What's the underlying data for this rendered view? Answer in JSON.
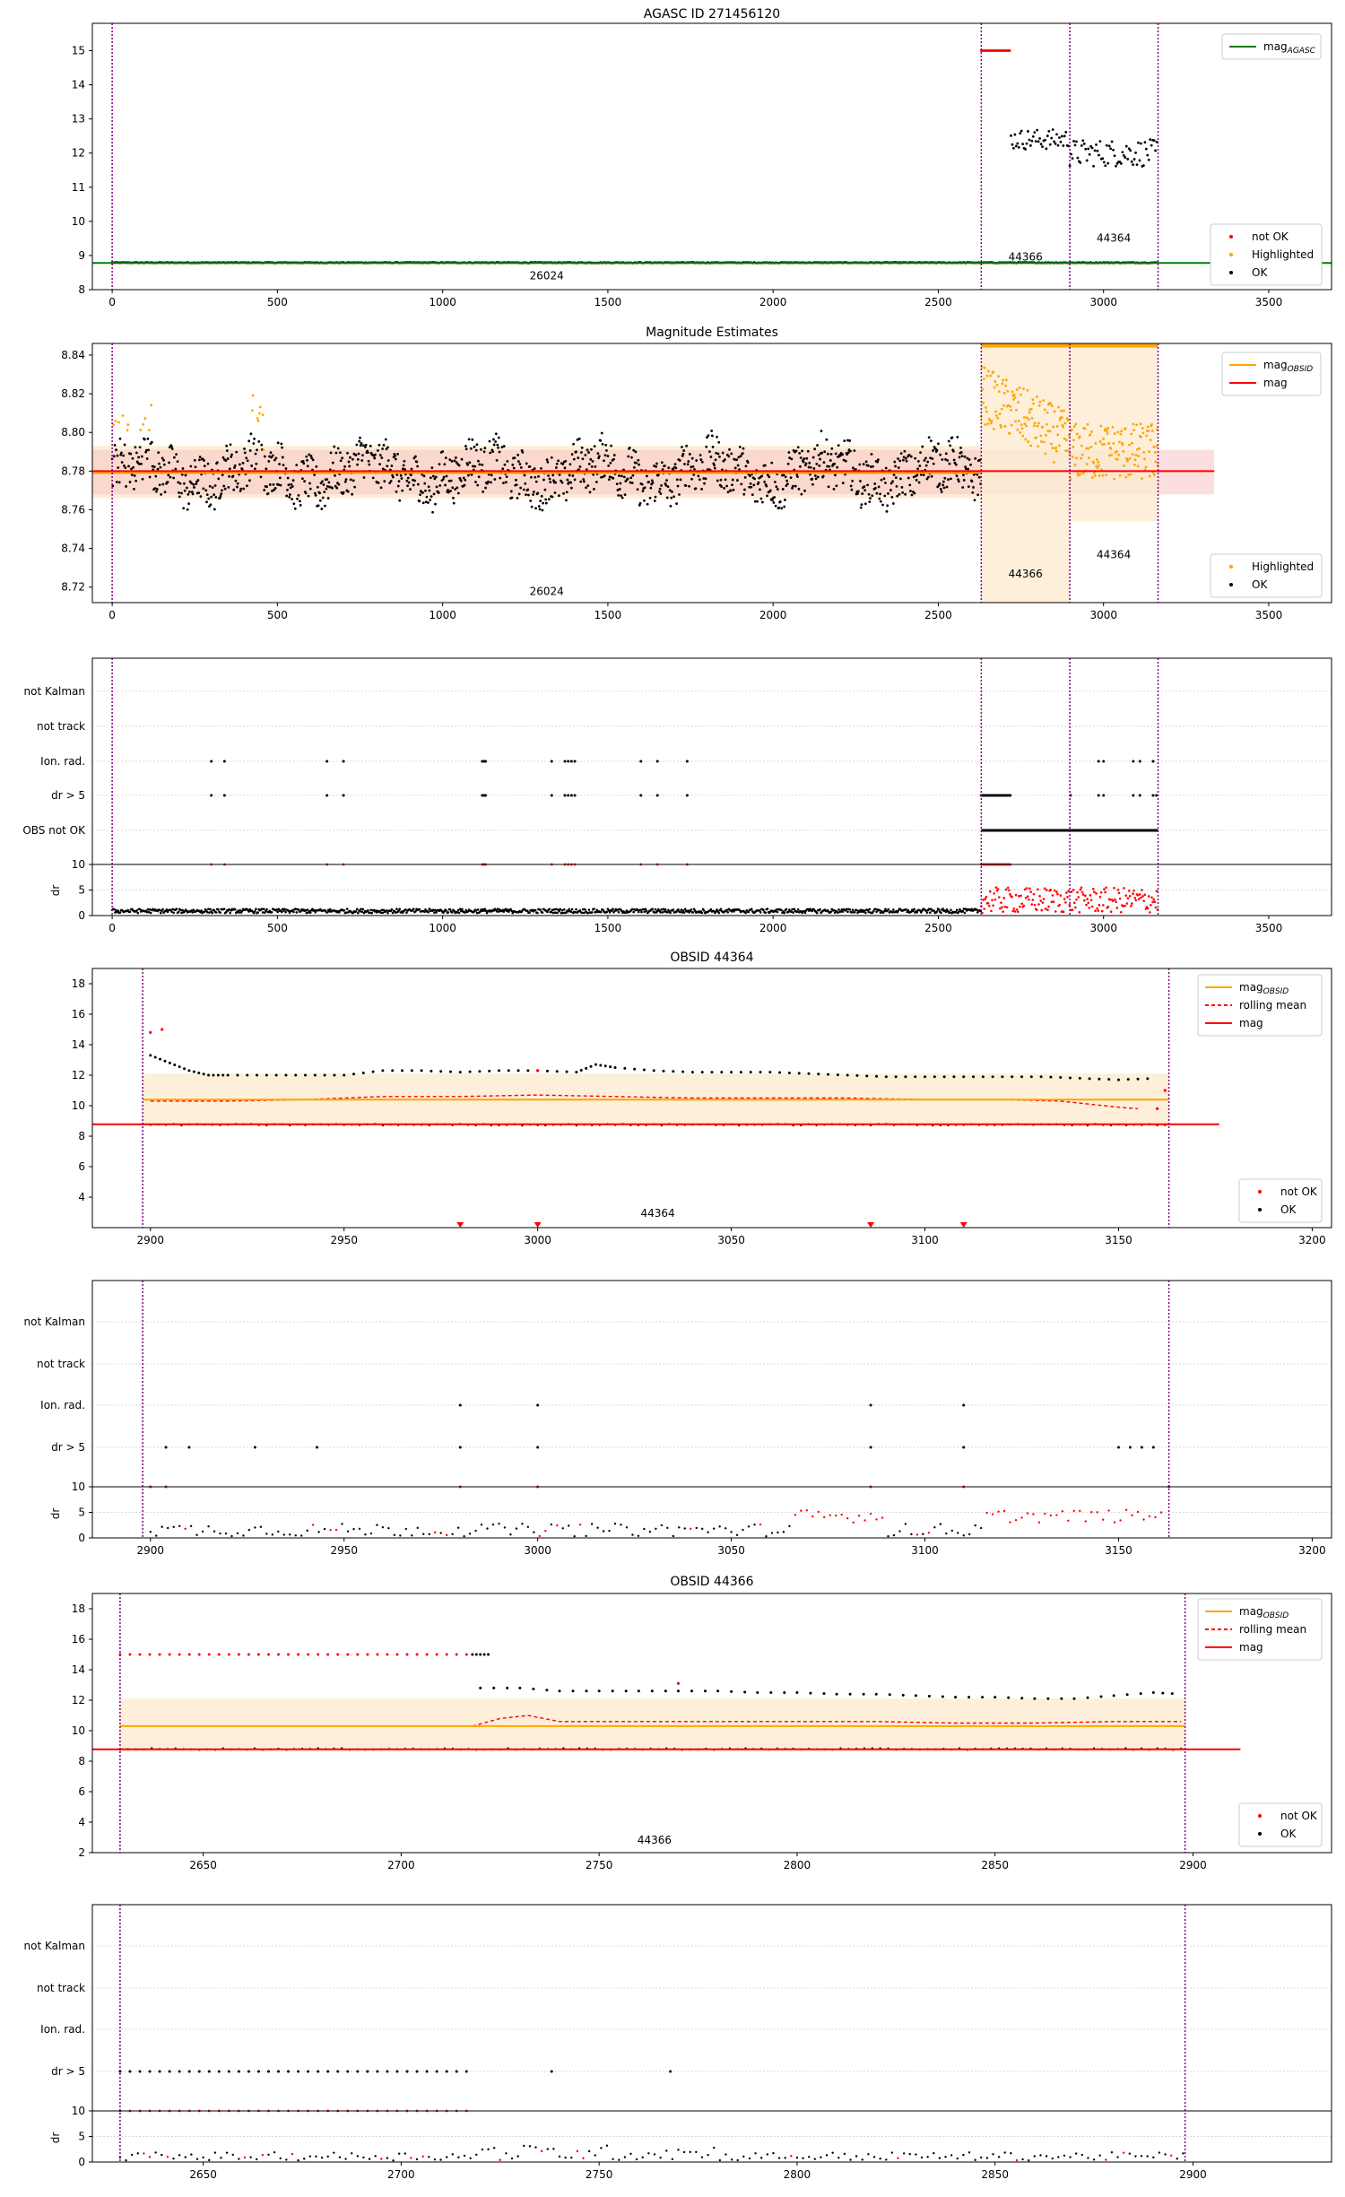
{
  "figure": {
    "title_main": "AGASC ID 271456120"
  },
  "colors": {
    "ok": "#000000",
    "not_ok": "#ff0000",
    "highlighted": "#ffa500",
    "mag_agasc": "#008000",
    "mag_obsid": "#ffa500",
    "mag": "#ff0000",
    "rolling": "#ff0000",
    "obs_line": "#800080",
    "grid": "#cccccc",
    "shade_orange": "#fdebd0",
    "shade_red": "#f8c9c9"
  },
  "chart_data": [
    {
      "type": "scatter",
      "title": "AGASC ID 271456120",
      "xlim": [
        -60,
        3690
      ],
      "ylim": [
        8,
        15.8
      ],
      "xticks": [
        "0",
        "500",
        "1000",
        "1500",
        "2000",
        "2500",
        "3000",
        "3500"
      ],
      "xtick_values": [
        0,
        500,
        1000,
        1500,
        2000,
        2500,
        3000,
        3500
      ],
      "yticks": [
        "8",
        "9",
        "10",
        "11",
        "12",
        "13",
        "14",
        "15"
      ],
      "ytick_values": [
        8,
        9,
        10,
        11,
        12,
        13,
        14,
        15
      ],
      "obs_boundaries": [
        0,
        2630,
        2898,
        3165
      ],
      "obsid_labels": [
        {
          "text": "26024",
          "x": 1315,
          "y": 8.3
        },
        {
          "text": "44366",
          "x": 2764,
          "y": 8.85
        },
        {
          "text": "44364",
          "x": 3031,
          "y": 9.4
        }
      ],
      "agasc_mag": 8.78,
      "series": [
        {
          "name": "OK",
          "segments": [
            {
              "x0": 0,
              "x1": 2630,
              "y": 8.79,
              "spread": 0.02
            },
            {
              "x0": 2630,
              "x1": 3165,
              "y": 8.79,
              "spread": 0.02
            },
            {
              "x0": 2720,
              "x1": 2898,
              "y": 12.4,
              "spread": 0.6
            },
            {
              "x0": 2898,
              "x1": 3165,
              "y": 12.0,
              "spread": 0.8
            }
          ]
        },
        {
          "name": "not OK",
          "segments": [
            {
              "x0": 2630,
              "x1": 2720,
              "y": 15.0,
              "spread": 0.0
            }
          ]
        },
        {
          "name": "Highlighted",
          "segments": []
        }
      ],
      "legend_top": [
        "mag_AGASC"
      ],
      "legend_bottom": [
        "not OK",
        "Highlighted",
        "OK"
      ]
    },
    {
      "type": "scatter",
      "title": "Magnitude Estimates",
      "xlim": [
        -60,
        3690
      ],
      "ylim": [
        8.712,
        8.846
      ],
      "xticks": [
        "0",
        "500",
        "1000",
        "1500",
        "2000",
        "2500",
        "3000",
        "3500"
      ],
      "xtick_values": [
        0,
        500,
        1000,
        1500,
        2000,
        2500,
        3000,
        3500
      ],
      "yticks": [
        "8.72",
        "8.74",
        "8.76",
        "8.78",
        "8.80",
        "8.82",
        "8.84"
      ],
      "ytick_values": [
        8.72,
        8.74,
        8.76,
        8.78,
        8.8,
        8.82,
        8.84
      ],
      "obs_boundaries": [
        0,
        2630,
        2898,
        3165
      ],
      "mag": 8.78,
      "mag_band": [
        8.768,
        8.791
      ],
      "mag_obsid": [
        {
          "x0": -60,
          "x1": 2630,
          "y": 8.779,
          "band": [
            8.766,
            8.793
          ]
        },
        {
          "x0": 2630,
          "x1": 2898,
          "y": 8.85,
          "band": [
            8.712,
            8.846
          ]
        },
        {
          "x0": 2898,
          "x1": 3165,
          "y": 8.85,
          "band": [
            8.754,
            8.846
          ]
        }
      ],
      "obsid_labels": [
        {
          "text": "26024",
          "x": 1315,
          "y": 8.716
        },
        {
          "text": "44366",
          "x": 2764,
          "y": 8.725
        },
        {
          "text": "44364",
          "x": 3031,
          "y": 8.735
        }
      ],
      "legend_top": [
        "mag_OBSID",
        "mag"
      ],
      "legend_bottom": [
        "Highlighted",
        "OK"
      ]
    },
    {
      "type": "scatter",
      "title": "",
      "flags": [
        "not Kalman",
        "not track",
        "Ion. rad.",
        "dr > 5",
        "OBS not OK"
      ],
      "xlim": [
        -60,
        3690
      ],
      "obs_boundaries": [
        0,
        2630,
        2898,
        3165
      ],
      "ion_rad_x": [
        300,
        340,
        650,
        700,
        1120,
        1125,
        1130,
        1330,
        1370,
        1380,
        1390,
        1400,
        1600,
        1650,
        1740
      ],
      "dr5_x": [
        300,
        340,
        650,
        700,
        1120,
        1125,
        1130,
        1330,
        1370,
        1380,
        1390,
        1400,
        1600,
        1650,
        1740
      ],
      "dr5_dense": [
        [
          2630,
          2720
        ]
      ],
      "dr5_late_x": [
        2900,
        2985,
        3000,
        3090,
        3110,
        3150,
        3160
      ],
      "ion_late_x": [
        2985,
        3000,
        3090,
        3110,
        3150
      ],
      "obs_not_ok": [
        [
          2630,
          3165
        ]
      ],
      "dr_ylim": [
        0,
        10
      ],
      "dr_yticks": [
        "0",
        "5",
        "10"
      ],
      "dr_ytick_values": [
        0,
        5,
        10
      ],
      "ylabel_dr": "dr"
    },
    {
      "type": "scatter",
      "title": "OBSID 44364",
      "xlim": [
        2885,
        3205
      ],
      "ylim": [
        2,
        19
      ],
      "xticks": [
        "2900",
        "2950",
        "3000",
        "3050",
        "3100",
        "3150",
        "3200"
      ],
      "xtick_values": [
        2900,
        2950,
        3000,
        3050,
        3100,
        3150,
        3200
      ],
      "yticks": [
        "4",
        "6",
        "8",
        "10",
        "12",
        "14",
        "16",
        "18"
      ],
      "ytick_values": [
        4,
        6,
        8,
        10,
        12,
        14,
        16,
        18
      ],
      "obs_boundaries": [
        2898,
        3163
      ],
      "mag": 8.78,
      "mag_obsid": 10.4,
      "mag_obsid_band": [
        8.7,
        12.1
      ],
      "ok_track": [
        [
          2900,
          13.3
        ],
        [
          2905,
          12.8
        ],
        [
          2910,
          12.3
        ],
        [
          2915,
          12.0
        ],
        [
          2920,
          12.0
        ],
        [
          2930,
          12.0
        ],
        [
          2940,
          12.0
        ],
        [
          2950,
          12.0
        ],
        [
          2960,
          12.3
        ],
        [
          2970,
          12.3
        ],
        [
          2980,
          12.2
        ],
        [
          2990,
          12.3
        ],
        [
          3000,
          12.3
        ],
        [
          3010,
          12.2
        ],
        [
          3015,
          12.7
        ],
        [
          3020,
          12.5
        ],
        [
          3030,
          12.3
        ],
        [
          3040,
          12.2
        ],
        [
          3050,
          12.2
        ],
        [
          3060,
          12.2
        ],
        [
          3070,
          12.1
        ],
        [
          3080,
          12.0
        ],
        [
          3090,
          11.9
        ],
        [
          3100,
          11.9
        ],
        [
          3110,
          11.9
        ],
        [
          3120,
          11.9
        ],
        [
          3130,
          11.9
        ],
        [
          3140,
          11.8
        ],
        [
          3150,
          11.7
        ],
        [
          3160,
          11.8
        ]
      ],
      "not_ok_track": [
        [
          2900,
          14.8
        ],
        [
          2903,
          15.0
        ],
        [
          3000,
          12.3
        ],
        [
          3162,
          11.0
        ],
        [
          3160,
          9.8
        ]
      ],
      "rolling_track": [
        [
          2900,
          10.3
        ],
        [
          2920,
          10.3
        ],
        [
          2940,
          10.4
        ],
        [
          2960,
          10.6
        ],
        [
          2980,
          10.6
        ],
        [
          3000,
          10.7
        ],
        [
          3020,
          10.6
        ],
        [
          3040,
          10.5
        ],
        [
          3060,
          10.5
        ],
        [
          3080,
          10.5
        ],
        [
          3100,
          10.4
        ],
        [
          3120,
          10.4
        ],
        [
          3135,
          10.3
        ],
        [
          3150,
          9.9
        ],
        [
          3155,
          9.8
        ]
      ],
      "bottom_markers_x": [
        2980,
        3000,
        3086,
        3110
      ],
      "obsid_label": {
        "text": "44364",
        "x": 3031,
        "y": 2.7
      },
      "legend_top": [
        "mag_OBSID",
        "rolling mean",
        "mag"
      ],
      "legend_bottom": [
        "not OK",
        "OK"
      ]
    },
    {
      "type": "scatter",
      "title": "",
      "flags": [
        "not Kalman",
        "not track",
        "Ion. rad.",
        "dr > 5"
      ],
      "xlim": [
        2885,
        3205
      ],
      "xticks": [
        "2900",
        "2950",
        "3000",
        "3050",
        "3100",
        "3150",
        "3200"
      ],
      "xtick_values": [
        2900,
        2950,
        3000,
        3050,
        3100,
        3150,
        3200
      ],
      "obs_boundaries": [
        2898,
        3163
      ],
      "ion_rad_x": [
        2980,
        3000,
        3086,
        3110
      ],
      "dr5_x": [
        2904,
        2910,
        2927,
        2943,
        2980,
        3000,
        3086,
        3110,
        3150,
        3153,
        3156,
        3159
      ],
      "dr10_x": [
        2900,
        2904,
        2980,
        3000,
        3086,
        3110,
        3163
      ],
      "dr_ylim": [
        0,
        10
      ],
      "dr_yticks": [
        "0",
        "5",
        "10"
      ],
      "dr_ytick_values": [
        0,
        5,
        10
      ],
      "ylabel_dr": "dr"
    },
    {
      "type": "scatter",
      "title": "OBSID 44366",
      "xlim": [
        2622,
        2935
      ],
      "ylim": [
        2,
        19
      ],
      "xticks": [
        "2650",
        "2700",
        "2750",
        "2800",
        "2850",
        "2900"
      ],
      "xtick_values": [
        2650,
        2700,
        2750,
        2800,
        2850,
        2900
      ],
      "yticks": [
        "2",
        "4",
        "6",
        "8",
        "10",
        "12",
        "14",
        "16",
        "18"
      ],
      "ytick_values": [
        2,
        4,
        6,
        8,
        10,
        12,
        14,
        16,
        18
      ],
      "obs_boundaries": [
        2629,
        2898
      ],
      "mag": 8.78,
      "mag_obsid": 10.3,
      "mag_obsid_band": [
        8.6,
        12.1
      ],
      "ok_track": [
        [
          2720,
          12.8
        ],
        [
          2730,
          12.8
        ],
        [
          2740,
          12.6
        ],
        [
          2750,
          12.6
        ],
        [
          2760,
          12.6
        ],
        [
          2770,
          12.6
        ],
        [
          2780,
          12.6
        ],
        [
          2790,
          12.5
        ],
        [
          2800,
          12.5
        ],
        [
          2810,
          12.4
        ],
        [
          2820,
          12.4
        ],
        [
          2830,
          12.3
        ],
        [
          2840,
          12.2
        ],
        [
          2850,
          12.2
        ],
        [
          2860,
          12.1
        ],
        [
          2870,
          12.1
        ],
        [
          2880,
          12.3
        ],
        [
          2890,
          12.5
        ],
        [
          2897,
          12.4
        ]
      ],
      "not_ok_track": [
        [
          2629,
          15.0
        ],
        [
          2718,
          15.0
        ],
        [
          2770,
          13.1
        ]
      ],
      "rolling_track": [
        [
          2718,
          10.3
        ],
        [
          2725,
          10.8
        ],
        [
          2732,
          11.0
        ],
        [
          2740,
          10.6
        ],
        [
          2760,
          10.6
        ],
        [
          2780,
          10.6
        ],
        [
          2800,
          10.6
        ],
        [
          2820,
          10.6
        ],
        [
          2840,
          10.5
        ],
        [
          2860,
          10.5
        ],
        [
          2880,
          10.6
        ],
        [
          2897,
          10.6
        ]
      ],
      "obsid_label": {
        "text": "44366",
        "x": 2764,
        "y": 2.6
      },
      "legend_top": [
        "mag_OBSID",
        "rolling mean",
        "mag"
      ],
      "legend_bottom": [
        "not OK",
        "OK"
      ]
    },
    {
      "type": "scatter",
      "title": "",
      "flags": [
        "not Kalman",
        "not track",
        "Ion. rad.",
        "dr > 5"
      ],
      "xlim": [
        2622,
        2935
      ],
      "xticks": [
        "2650",
        "2700",
        "2750",
        "2800",
        "2850",
        "2900"
      ],
      "xtick_values": [
        2650,
        2700,
        2750,
        2800,
        2850,
        2900
      ],
      "obs_boundaries": [
        2629,
        2898
      ],
      "dr5_range": [
        2629,
        2718
      ],
      "dr5_x": [
        2738,
        2768
      ],
      "dr10_range": [
        2629,
        2718
      ],
      "dr_ylim": [
        0,
        10
      ],
      "dr_yticks": [
        "0",
        "5",
        "10"
      ],
      "dr_ytick_values": [
        0,
        5,
        10
      ],
      "ylabel_dr": "dr"
    }
  ],
  "legend_labels": {
    "mag_AGASC": "mag",
    "mag_AGASC_sub": "AGASC",
    "mag_OBSID": "mag",
    "mag_OBSID_sub": "OBSID",
    "mag": "mag",
    "rolling mean": "rolling mean",
    "not OK": "not OK",
    "Highlighted": "Highlighted",
    "OK": "OK"
  }
}
